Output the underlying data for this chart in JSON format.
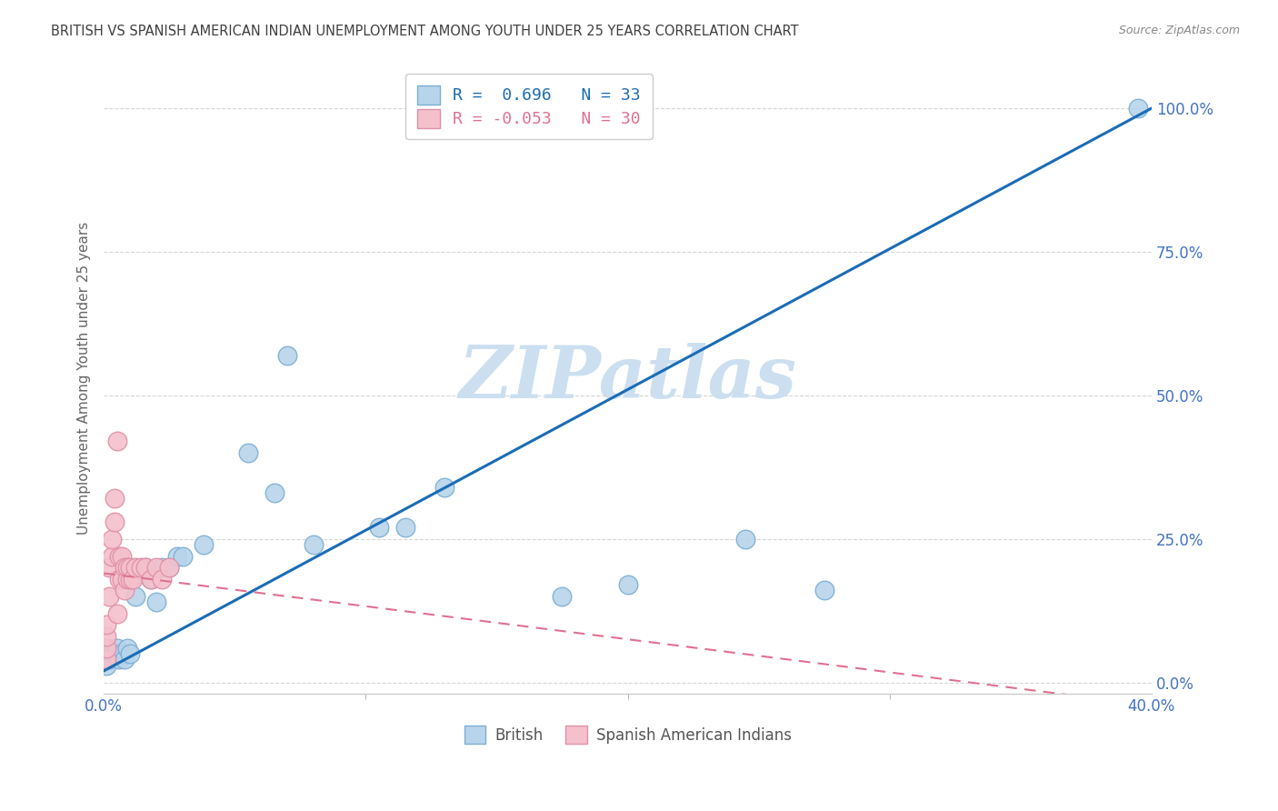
{
  "title": "BRITISH VS SPANISH AMERICAN INDIAN UNEMPLOYMENT AMONG YOUTH UNDER 25 YEARS CORRELATION CHART",
  "source": "Source: ZipAtlas.com",
  "xlim": [
    0.0,
    0.4
  ],
  "ylim": [
    -0.02,
    1.08
  ],
  "ylabel": "Unemployment Among Youth under 25 years",
  "british_R": 0.696,
  "british_N": 33,
  "spanish_R": -0.053,
  "spanish_N": 30,
  "british_color": "#b8d4ea",
  "british_line_color": "#1a6cb5",
  "british_edge_color": "#7baed4",
  "spanish_color": "#f4c0cc",
  "spanish_line_color": "#e07090",
  "spanish_edge_color": "#e090a8",
  "legend_blue_label": "British",
  "legend_pink_label": "Spanish American Indians",
  "watermark": "ZIPatlas",
  "british_x": [
    0.001,
    0.002,
    0.002,
    0.003,
    0.004,
    0.005,
    0.006,
    0.007,
    0.008,
    0.009,
    0.01,
    0.012,
    0.014,
    0.016,
    0.018,
    0.02,
    0.022,
    0.025,
    0.028,
    0.03,
    0.038,
    0.055,
    0.065,
    0.07,
    0.08,
    0.105,
    0.115,
    0.13,
    0.175,
    0.2,
    0.245,
    0.275,
    0.395
  ],
  "british_y": [
    0.03,
    0.04,
    0.06,
    0.05,
    0.05,
    0.06,
    0.04,
    0.05,
    0.04,
    0.06,
    0.05,
    0.15,
    0.19,
    0.2,
    0.18,
    0.14,
    0.2,
    0.2,
    0.22,
    0.22,
    0.24,
    0.4,
    0.33,
    0.57,
    0.24,
    0.27,
    0.27,
    0.34,
    0.15,
    0.17,
    0.25,
    0.16,
    1.0
  ],
  "spanish_x": [
    0.001,
    0.001,
    0.001,
    0.001,
    0.002,
    0.002,
    0.003,
    0.003,
    0.004,
    0.004,
    0.005,
    0.005,
    0.006,
    0.006,
    0.007,
    0.007,
    0.008,
    0.008,
    0.009,
    0.009,
    0.01,
    0.01,
    0.011,
    0.012,
    0.014,
    0.016,
    0.018,
    0.02,
    0.022,
    0.025
  ],
  "spanish_y": [
    0.04,
    0.06,
    0.08,
    0.1,
    0.15,
    0.2,
    0.22,
    0.25,
    0.28,
    0.32,
    0.42,
    0.12,
    0.18,
    0.22,
    0.18,
    0.22,
    0.16,
    0.2,
    0.18,
    0.2,
    0.18,
    0.2,
    0.18,
    0.2,
    0.2,
    0.2,
    0.18,
    0.2,
    0.18,
    0.2
  ],
  "british_line_x0": 0.0,
  "british_line_y0": 0.02,
  "british_line_x1": 0.4,
  "british_line_y1": 1.0,
  "spanish_line_x0": 0.0,
  "spanish_line_y0": 0.19,
  "spanish_line_x1": 0.4,
  "spanish_line_y1": -0.04,
  "background_color": "#ffffff",
  "grid_color": "#cccccc",
  "title_color": "#404040",
  "axis_color": "#4472c4",
  "watermark_color": "#ccdff0",
  "xtick_positions": [
    0.0,
    0.4
  ],
  "xtick_labels": [
    "0.0%",
    "40.0%"
  ],
  "ytick_positions": [
    0.0,
    0.25,
    0.5,
    0.75,
    1.0
  ],
  "ytick_labels": [
    "0.0%",
    "25.0%",
    "50.0%",
    "75.0%",
    "100.0%"
  ]
}
